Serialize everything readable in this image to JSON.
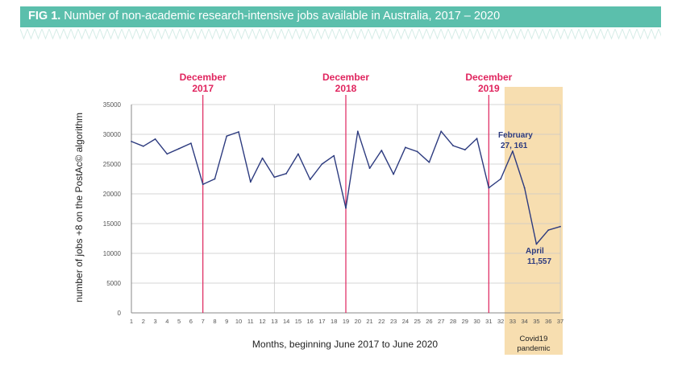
{
  "header": {
    "fig_label": "FIG 1.",
    "title": "Number of non-academic research-intensive jobs available in Australia, 2017 – 2020"
  },
  "colors": {
    "banner": "#5bbfac",
    "line": "#2d3b7f",
    "marker": "#e0245e",
    "shade": "#f7deb0",
    "grid": "#c8c8c8"
  },
  "chart_data": {
    "type": "line",
    "title": "Number of non-academic research-intensive jobs available in Australia, 2017 – 2020",
    "xlabel": "Months, beginning June 2017 to June 2020",
    "ylabel": "number of jobs +8 on the PostAc© algorithm",
    "x": [
      1,
      2,
      3,
      4,
      5,
      6,
      7,
      8,
      9,
      10,
      11,
      12,
      13,
      14,
      15,
      16,
      17,
      18,
      19,
      20,
      21,
      22,
      23,
      24,
      25,
      26,
      27,
      28,
      29,
      30,
      31,
      32,
      33,
      34,
      35,
      36,
      37
    ],
    "xlim": [
      1,
      37
    ],
    "ylim": [
      0,
      35000
    ],
    "yticks": [
      0,
      5000,
      10000,
      15000,
      20000,
      25000,
      30000,
      35000
    ],
    "grid": "vertical lines at every 6 months and horizontal lines at every 5000",
    "series": [
      {
        "values": [
          28800,
          28000,
          29200,
          26700,
          27600,
          28500,
          21600,
          22500,
          29700,
          30400,
          22000,
          26000,
          22800,
          23400,
          26700,
          22400,
          25000,
          26400,
          17600,
          30500,
          24300,
          27300,
          23300,
          27800,
          27100,
          25300,
          30500,
          28100,
          27400,
          29300,
          21000,
          22500,
          27161,
          21000,
          11557,
          13900,
          14500
        ]
      }
    ],
    "markers": [
      {
        "month": 7,
        "label_line1": "December",
        "label_line2": "2017"
      },
      {
        "month": 19,
        "label_line1": "December",
        "label_line2": "2018"
      },
      {
        "month": 31,
        "label_line1": "December",
        "label_line2": "2019"
      }
    ],
    "shaded_region": {
      "from": 33,
      "to": 37,
      "label_line1": "Covid19",
      "label_line2": "pandemic"
    },
    "annotations": [
      {
        "month": 33,
        "line1": "February",
        "line2": "27, 161"
      },
      {
        "month": 35,
        "line1": "April",
        "line2": "11,557"
      }
    ]
  }
}
